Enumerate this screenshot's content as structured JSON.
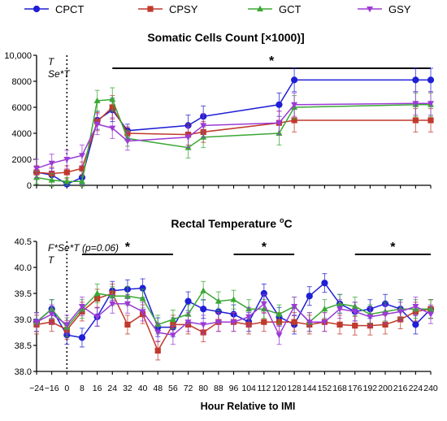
{
  "legend": [
    "CPCT",
    "CPSY",
    "GCT",
    "GSY"
  ],
  "colors": {
    "CPCT": "#1f1fd6",
    "CPSY": "#c0392b",
    "GCT": "#3aa834",
    "GSY": "#9b3bd6",
    "error": "#e8a9e8"
  },
  "x_hours": [
    -24,
    -16,
    0,
    8,
    16,
    24,
    32,
    40,
    48,
    56,
    72,
    80,
    88,
    96,
    104,
    112,
    120,
    128,
    144,
    152,
    168,
    176,
    192,
    200,
    216,
    224,
    240
  ],
  "xlabel": "Hour Relative to IMI",
  "chart_data": [
    {
      "type": "line",
      "title": "Somatic Cells Count [×1000)]",
      "xlabel": "",
      "ylabel": "",
      "ylim": [
        0,
        10000
      ],
      "yticks": [
        "0",
        "2000",
        "4000",
        "6000",
        "8000",
        "10,000"
      ],
      "annotations": [
        "T",
        "Se*T"
      ],
      "significance": [
        {
          "label": "*",
          "x_from": 24,
          "x_to": 240
        }
      ],
      "vline_x": 0,
      "series": [
        {
          "name": "CPCT",
          "x": [
            -24,
            -16,
            0,
            8,
            16,
            24,
            32,
            72,
            80,
            120,
            128,
            224,
            240
          ],
          "y": [
            1000,
            800,
            100,
            600,
            5000,
            5800,
            4200,
            4600,
            5300,
            6200,
            8100,
            8100,
            8100
          ],
          "err": [
            500,
            500,
            200,
            500,
            700,
            900,
            500,
            800,
            800,
            900,
            900,
            900,
            900
          ]
        },
        {
          "name": "CPSY",
          "x": [
            -24,
            -16,
            0,
            8,
            16,
            24,
            32,
            72,
            80,
            120,
            128,
            224,
            240
          ],
          "y": [
            1000,
            900,
            1000,
            1300,
            4900,
            6000,
            4000,
            3900,
            4100,
            4800,
            5000,
            5000,
            5000
          ],
          "err": [
            500,
            500,
            500,
            500,
            700,
            900,
            500,
            800,
            800,
            900,
            900,
            900,
            900
          ]
        },
        {
          "name": "GCT",
          "x": [
            -24,
            -16,
            0,
            8,
            16,
            24,
            32,
            72,
            80,
            120,
            128,
            224,
            240
          ],
          "y": [
            600,
            400,
            300,
            300,
            6500,
            6600,
            3600,
            2900,
            3700,
            4000,
            6000,
            6200,
            6200
          ],
          "err": [
            500,
            500,
            300,
            400,
            800,
            900,
            600,
            800,
            800,
            900,
            900,
            900,
            900
          ]
        },
        {
          "name": "GSY",
          "x": [
            -24,
            -16,
            0,
            8,
            16,
            24,
            32,
            72,
            80,
            120,
            128,
            224,
            240
          ],
          "y": [
            1300,
            1700,
            2000,
            2300,
            4700,
            4400,
            3400,
            3700,
            4600,
            4800,
            6200,
            6300,
            6300
          ],
          "err": [
            700,
            700,
            700,
            800,
            800,
            800,
            700,
            800,
            900,
            900,
            900,
            900,
            900
          ]
        }
      ]
    },
    {
      "type": "line",
      "title": "Rectal Temperature",
      "title_superscript": "o",
      "title_unit": "C",
      "xlabel": "Hour Relative to IMI",
      "ylabel": "",
      "ylim": [
        38.0,
        40.5
      ],
      "yticks": [
        "38.0",
        "38.5",
        "39.0",
        "39.5",
        "40.0",
        "40.5"
      ],
      "annotations": [
        "F*Se*T (p=0.06)",
        "T"
      ],
      "significance": [
        {
          "label": "*",
          "x_from": 8,
          "x_to": 56
        },
        {
          "label": "*",
          "x_from": 96,
          "x_to": 128
        },
        {
          "label": "*",
          "x_from": 176,
          "x_to": 240
        }
      ],
      "vline_x": 0,
      "series": [
        {
          "name": "CPCT",
          "y": [
            38.95,
            39.2,
            38.7,
            38.65,
            39.05,
            39.55,
            39.58,
            39.6,
            38.85,
            38.85,
            39.35,
            39.2,
            39.15,
            39.1,
            38.95,
            39.5,
            39.05,
            38.9,
            39.45,
            39.7,
            39.3,
            39.15,
            39.2,
            39.3,
            39.2,
            38.9,
            39.2
          ]
        },
        {
          "name": "CPSY",
          "y": [
            38.9,
            38.95,
            38.8,
            39.15,
            39.4,
            39.5,
            38.9,
            39.1,
            38.4,
            38.9,
            38.9,
            38.75,
            38.95,
            38.95,
            38.9,
            38.95,
            38.95,
            38.95,
            38.9,
            38.95,
            38.9,
            38.88,
            38.88,
            38.9,
            39.0,
            39.15,
            39.2
          ]
        },
        {
          "name": "GCT",
          "y": [
            38.95,
            39.2,
            38.85,
            39.2,
            39.5,
            39.45,
            39.45,
            39.4,
            38.9,
            39.0,
            39.1,
            39.55,
            39.35,
            39.38,
            39.2,
            39.2,
            39.1,
            39.25,
            38.95,
            39.2,
            39.3,
            39.25,
            39.1,
            39.15,
            39.2,
            39.2,
            39.2
          ]
        },
        {
          "name": "GSY",
          "y": [
            38.95,
            39.1,
            38.9,
            39.25,
            39.05,
            39.3,
            39.3,
            39.15,
            38.75,
            38.7,
            38.95,
            38.9,
            38.95,
            38.95,
            39.05,
            39.3,
            38.7,
            39.25,
            38.95,
            38.95,
            39.2,
            39.15,
            39.05,
            39.1,
            39.15,
            39.25,
            39.1
          ]
        }
      ]
    }
  ]
}
